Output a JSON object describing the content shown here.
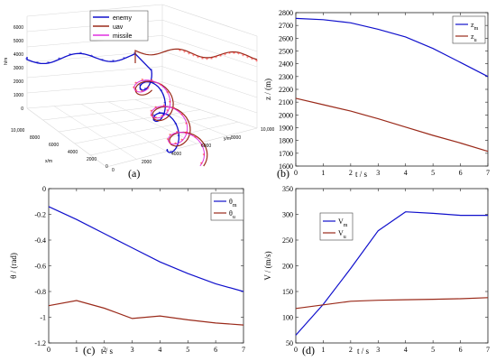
{
  "colors": {
    "blue": "#1010cc",
    "red": "#9a2a1a",
    "magenta": "#e030e0",
    "marker": "#ff3030",
    "axis": "#333333",
    "grid3d": "#d8d8d8"
  },
  "chart_data": [
    {
      "type": "line3d",
      "panel": "(a)",
      "legend": [
        "enemy",
        "uav",
        "missile"
      ],
      "zlabel": "h/m",
      "xlabel": "x/m",
      "ylabel": "y/m",
      "z_ticks": [
        "6000",
        "5000",
        "4000",
        "3000",
        "2000",
        "1000",
        "0"
      ],
      "x_ticks": [
        "10,000",
        "8000",
        "6000",
        "4000",
        "2000",
        "0"
      ],
      "y_ticks": [
        "0",
        "2000",
        "4000",
        "6000",
        "8000",
        "10,000"
      ],
      "series": [
        {
          "name": "enemy",
          "description": "wavy flight at ~6000 m"
        },
        {
          "name": "uav",
          "description": "descending spiral"
        },
        {
          "name": "missile",
          "description": "spiral with markers"
        }
      ]
    },
    {
      "type": "line",
      "panel": "(b)",
      "xlabel": "t / s",
      "ylabel": "z / (m)",
      "xlim": [
        0,
        7
      ],
      "ylim": [
        1600,
        2800
      ],
      "x_ticks": [
        0,
        1,
        2,
        3,
        4,
        5,
        6,
        7
      ],
      "y_ticks": [
        1600,
        1700,
        1800,
        1900,
        2000,
        2100,
        2200,
        2300,
        2400,
        2500,
        2600,
        2700,
        2800
      ],
      "legend": [
        {
          "main": "z",
          "sub": "m"
        },
        {
          "main": "z",
          "sub": "u"
        }
      ],
      "series": [
        {
          "name": "z_m",
          "x": [
            0,
            1,
            2,
            3,
            4,
            5,
            6,
            7
          ],
          "y": [
            2755,
            2745,
            2720,
            2670,
            2610,
            2520,
            2410,
            2300
          ]
        },
        {
          "name": "z_u",
          "x": [
            0,
            1,
            2,
            3,
            4,
            5,
            6,
            7
          ],
          "y": [
            2130,
            2080,
            2030,
            1970,
            1905,
            1840,
            1780,
            1715
          ]
        }
      ]
    },
    {
      "type": "line",
      "panel": "(c)",
      "xlabel": "t / s",
      "ylabel": "θ / (rad)",
      "xlim": [
        0,
        7
      ],
      "ylim": [
        -1.2,
        0
      ],
      "x_ticks": [
        0,
        1,
        2,
        3,
        4,
        5,
        6,
        7
      ],
      "y_ticks": [
        0,
        -0.2,
        -0.4,
        -0.6,
        -0.8,
        -1,
        -1.2
      ],
      "legend": [
        {
          "main": "θ",
          "sub": "m"
        },
        {
          "main": "θ",
          "sub": "u"
        }
      ],
      "series": [
        {
          "name": "θ_m",
          "x": [
            0,
            1,
            2,
            3,
            4,
            5,
            6,
            7
          ],
          "y": [
            -0.14,
            -0.24,
            -0.35,
            -0.46,
            -0.57,
            -0.66,
            -0.74,
            -0.8
          ]
        },
        {
          "name": "θ_u",
          "x": [
            0,
            1,
            2,
            3,
            4,
            5,
            6,
            7
          ],
          "y": [
            -0.91,
            -0.87,
            -0.93,
            -1.01,
            -0.99,
            -1.02,
            -1.045,
            -1.06
          ]
        }
      ]
    },
    {
      "type": "line",
      "panel": "(d)",
      "xlabel": "t / s",
      "ylabel": "V / (m/s)",
      "xlim": [
        0,
        7
      ],
      "ylim": [
        50,
        350
      ],
      "x_ticks": [
        0,
        1,
        2,
        3,
        4,
        5,
        6,
        7
      ],
      "y_ticks": [
        50,
        100,
        150,
        200,
        250,
        300,
        350
      ],
      "legend": [
        {
          "main": "V",
          "sub": "m"
        },
        {
          "main": "V",
          "sub": "u"
        }
      ],
      "series": [
        {
          "name": "V_m",
          "x": [
            0,
            1,
            2,
            3,
            4,
            5,
            6,
            7
          ],
          "y": [
            65,
            125,
            195,
            268,
            305,
            302,
            298,
            298
          ]
        },
        {
          "name": "V_u",
          "x": [
            0,
            1,
            2,
            3,
            4,
            5,
            6,
            7
          ],
          "y": [
            117,
            124,
            131,
            133,
            134,
            135,
            136,
            138
          ]
        }
      ]
    }
  ]
}
